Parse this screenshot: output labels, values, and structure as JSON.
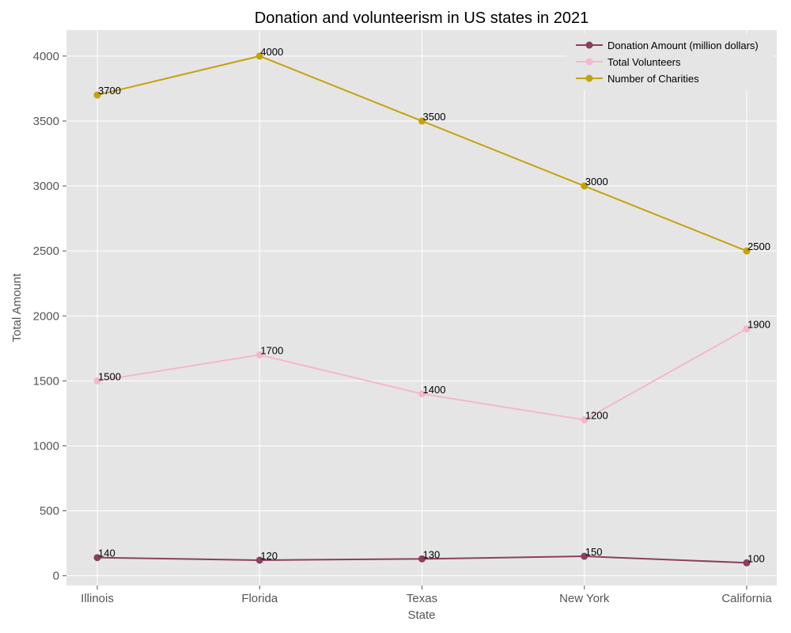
{
  "chart_data": {
    "type": "line",
    "title": "Donation and volunteerism in US states in 2021",
    "xlabel": "State",
    "ylabel": "Total Amount",
    "categories": [
      "Illinois",
      "Florida",
      "Texas",
      "New York",
      "California"
    ],
    "series": [
      {
        "name": "Donation Amount (million dollars)",
        "color": "#8b3f5e",
        "values": [
          140,
          120,
          130,
          150,
          100
        ]
      },
      {
        "name": "Total Volunteers",
        "color": "#f4b8c8",
        "values": [
          1500,
          1700,
          1400,
          1200,
          1900
        ]
      },
      {
        "name": "Number of Charities",
        "color": "#c4a20e",
        "values": [
          3700,
          4000,
          3500,
          3000,
          2500
        ]
      }
    ],
    "yticks": [
      0,
      500,
      1000,
      1500,
      2000,
      2500,
      3000,
      3500,
      4000
    ],
    "ylim": [
      -75,
      4200
    ],
    "grid": true,
    "legend_position": "top-right",
    "background": "#e5e5e5"
  }
}
